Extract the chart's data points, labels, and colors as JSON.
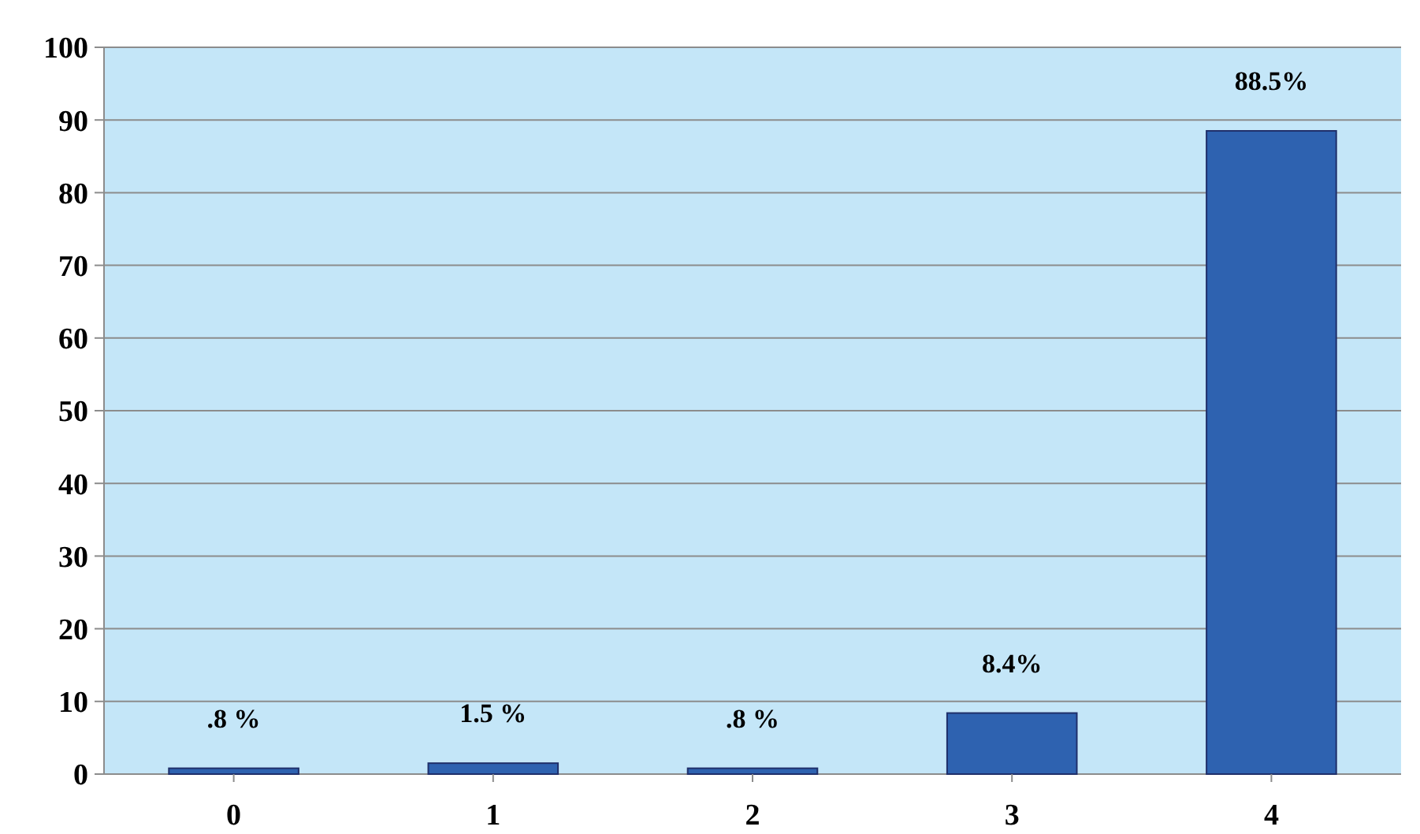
{
  "chart_data": {
    "type": "bar",
    "categories": [
      "0",
      "1",
      "2",
      "3",
      "4"
    ],
    "values": [
      0.8,
      1.5,
      0.8,
      8.4,
      88.5
    ],
    "value_labels": [
      ".8 %",
      "1.5 %",
      ".8 %",
      "8.4%",
      "88.5%"
    ],
    "color": "#2e62b0",
    "ylim": [
      0,
      100
    ],
    "yticks": [
      0,
      10,
      20,
      30,
      40,
      50,
      60,
      70,
      80,
      90,
      100
    ],
    "grid": "y"
  }
}
